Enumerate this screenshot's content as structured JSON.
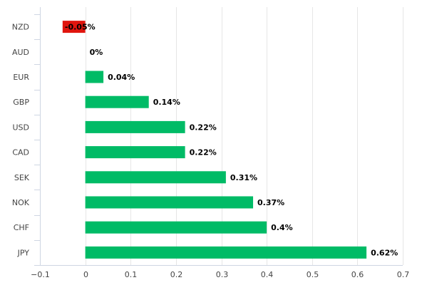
{
  "chart_data": {
    "type": "bar",
    "orientation": "horizontal",
    "categories": [
      "NZD",
      "AUD",
      "EUR",
      "GBP",
      "USD",
      "CAD",
      "SEK",
      "NOK",
      "CHF",
      "JPY"
    ],
    "values": [
      -0.05,
      0,
      0.04,
      0.14,
      0.22,
      0.22,
      0.31,
      0.37,
      0.4,
      0.62
    ],
    "data_labels": [
      "-0.05%",
      "0%",
      "0.04%",
      "0.14%",
      "0.22%",
      "0.22%",
      "0.31%",
      "0.37%",
      "0.4%",
      "0.62%"
    ],
    "xlim": [
      -0.1,
      0.7
    ],
    "x_ticks": [
      -0.1,
      0,
      0.1,
      0.2,
      0.3,
      0.4,
      0.5,
      0.6,
      0.7
    ],
    "x_tick_labels": [
      "−0.1",
      "0",
      "0.1",
      "0.2",
      "0.3",
      "0.4",
      "0.5",
      "0.6",
      "0.7"
    ],
    "grid": true,
    "colors": {
      "positive": "#00bb66",
      "negative": "#e0150e",
      "grid": "#e6e6e6",
      "axis": "#cfd6e3"
    }
  }
}
